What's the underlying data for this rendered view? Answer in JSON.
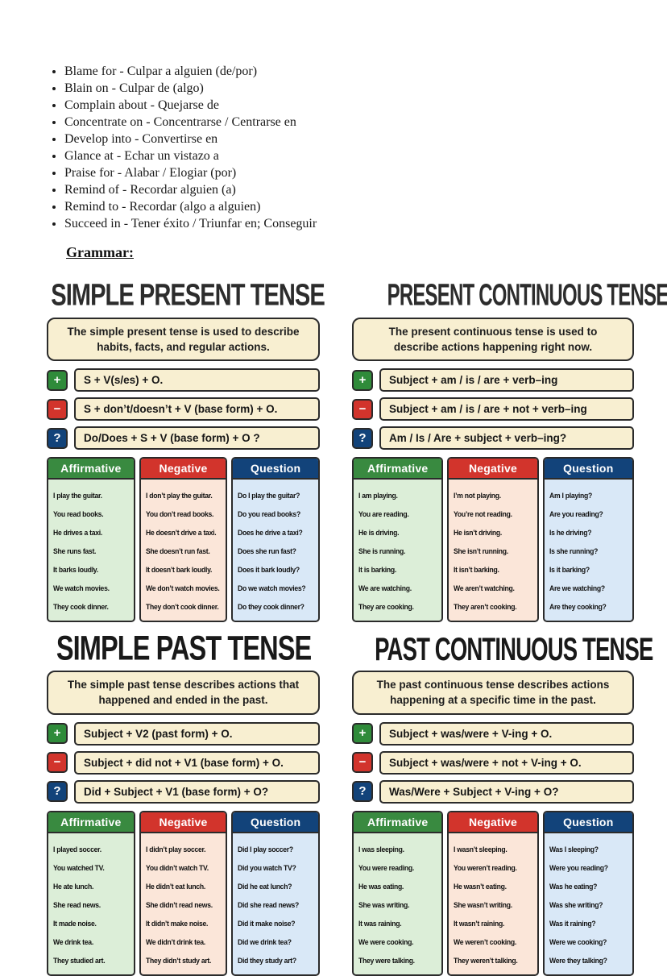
{
  "colors": {
    "affirmative_green": "#398a40",
    "negative_red": "#d2342c",
    "question_blue": "#12437a",
    "cream_box": "#f8efd1",
    "light_green": "#dceed8",
    "light_red": "#fbe6d9",
    "light_blue": "#d9e8f7",
    "border_dark": "#2b2b2b"
  },
  "prepositions_list": {
    "items": [
      "Blame for - Culpar a alguien (de/por)",
      "Blain on - Culpar de (algo)",
      "Complain about - Quejarse de",
      "Concentrate on - Concentrarse / Centrarse en",
      "Develop into - Convertirse en",
      "Glance at - Echar un vistazo a",
      "Praise for - Alabar / Elogiar (por)",
      "Remind of - Recordar alguien (a)",
      "Remind to - Recordar (algo a alguien)",
      "Succeed in - Tener éxito / Triunfar en; Conseguir"
    ]
  },
  "grammar_heading": "Grammar:",
  "panels": [
    {
      "title": "SIMPLE PRESENT TENSE",
      "description": "The simple present tense is used to describe habits, facts, and regular actions.",
      "formulas": [
        {
          "icon": "plus-icon",
          "symbol": "+",
          "text": "S + V(s/es) + O."
        },
        {
          "icon": "minus-icon",
          "symbol": "−",
          "text": "S + don’t/doesn’t + V (base form) + O."
        },
        {
          "icon": "question-icon",
          "symbol": "?",
          "text": "Do/Does + S + V (base form) + O ?"
        }
      ],
      "table": {
        "headers": [
          "Affirmative",
          "Negative",
          "Question"
        ],
        "affirmative": [
          "I play the guitar.",
          "You read books.",
          "He drives a taxi.",
          "She runs fast.",
          "It barks loudly.",
          "We watch movies.",
          "They cook dinner."
        ],
        "negative": [
          "I don’t play the guitar.",
          "You don’t read books.",
          "He doesn’t drive a taxi.",
          "She doesn’t run fast.",
          "It doesn’t bark loudly.",
          "We don’t watch movies.",
          "They don’t cook dinner."
        ],
        "question": [
          "Do I play the guitar?",
          "Do you read books?",
          "Does he drive a taxi?",
          "Does she run fast?",
          "Does it bark loudly?",
          "Do we watch movies?",
          "Do they cook dinner?"
        ]
      }
    },
    {
      "title": "PRESENT CONTINUOUS TENSE",
      "description": "The present continuous tense is used to describe actions happening right now.",
      "formulas": [
        {
          "icon": "plus-icon",
          "symbol": "+",
          "text": "Subject + am / is / are + verb–ing"
        },
        {
          "icon": "minus-icon",
          "symbol": "−",
          "text": "Subject + am / is / are + not + verb–ing"
        },
        {
          "icon": "question-icon",
          "symbol": "?",
          "text": "Am / Is / Are + subject + verb–ing?"
        }
      ],
      "table": {
        "headers": [
          "Affirmative",
          "Negative",
          "Question"
        ],
        "affirmative": [
          "I am playing.",
          "You are reading.",
          "He is driving.",
          "She is running.",
          "It is barking.",
          "We are watching.",
          "They are cooking."
        ],
        "negative": [
          "I’m not playing.",
          "You’re not reading.",
          "He isn’t driving.",
          "She isn’t running.",
          "It isn’t barking.",
          "We aren’t watching.",
          "They aren’t cooking."
        ],
        "question": [
          "Am I playing?",
          "Are you reading?",
          "Is he driving?",
          "Is she running?",
          "Is it barking?",
          "Are we watching?",
          "Are they cooking?"
        ]
      }
    },
    {
      "title": "SIMPLE PAST TENSE",
      "description": "The simple past tense describes actions that happened and ended in the past.",
      "formulas": [
        {
          "icon": "plus-icon",
          "symbol": "+",
          "text": "Subject + V2 (past form) + O."
        },
        {
          "icon": "minus-icon",
          "symbol": "−",
          "text": "Subject + did not + V1 (base form) + O."
        },
        {
          "icon": "question-icon",
          "symbol": "?",
          "text": "Did + Subject + V1 (base form) + O?"
        }
      ],
      "table": {
        "headers": [
          "Affirmative",
          "Negative",
          "Question"
        ],
        "affirmative": [
          "I played soccer.",
          "You watched TV.",
          "He ate lunch.",
          "She read news.",
          "It made noise.",
          "We drink tea.",
          "They studied art."
        ],
        "negative": [
          "I didn’t play soccer.",
          "You didn’t watch TV.",
          "He didn’t eat lunch.",
          "She didn’t read news.",
          "It didn’t make noise.",
          "We didn’t drink tea.",
          "They didn’t study art."
        ],
        "question": [
          "Did I play soccer?",
          "Did you watch TV?",
          "Did he eat lunch?",
          "Did she read news?",
          "Did it make noise?",
          "Did we drink tea?",
          "Did they study art?"
        ]
      }
    },
    {
      "title": "PAST CONTINUOUS TENSE",
      "description": "The past continuous tense describes actions happening at a specific time in the past.",
      "formulas": [
        {
          "icon": "plus-icon",
          "symbol": "+",
          "text": "Subject + was/were + V-ing + O."
        },
        {
          "icon": "minus-icon",
          "symbol": "−",
          "text": "Subject + was/were + not + V-ing + O."
        },
        {
          "icon": "question-icon",
          "symbol": "?",
          "text": "Was/Were + Subject + V-ing + O?"
        }
      ],
      "table": {
        "headers": [
          "Affirmative",
          "Negative",
          "Question"
        ],
        "affirmative": [
          "I was sleeping.",
          "You were reading.",
          "He was eating.",
          "She was writing.",
          "It was raining.",
          "We were cooking.",
          "They were talking."
        ],
        "negative": [
          "I wasn’t sleeping.",
          "You weren’t reading.",
          "He wasn’t eating.",
          "She wasn’t writing.",
          "It wasn’t raining.",
          "We weren’t cooking.",
          "They weren’t talking."
        ],
        "question": [
          "Was I sleeping?",
          "Were you reading?",
          "Was he eating?",
          "Was she writing?",
          "Was it raining?",
          "Were we cooking?",
          "Were they talking?"
        ]
      }
    }
  ]
}
